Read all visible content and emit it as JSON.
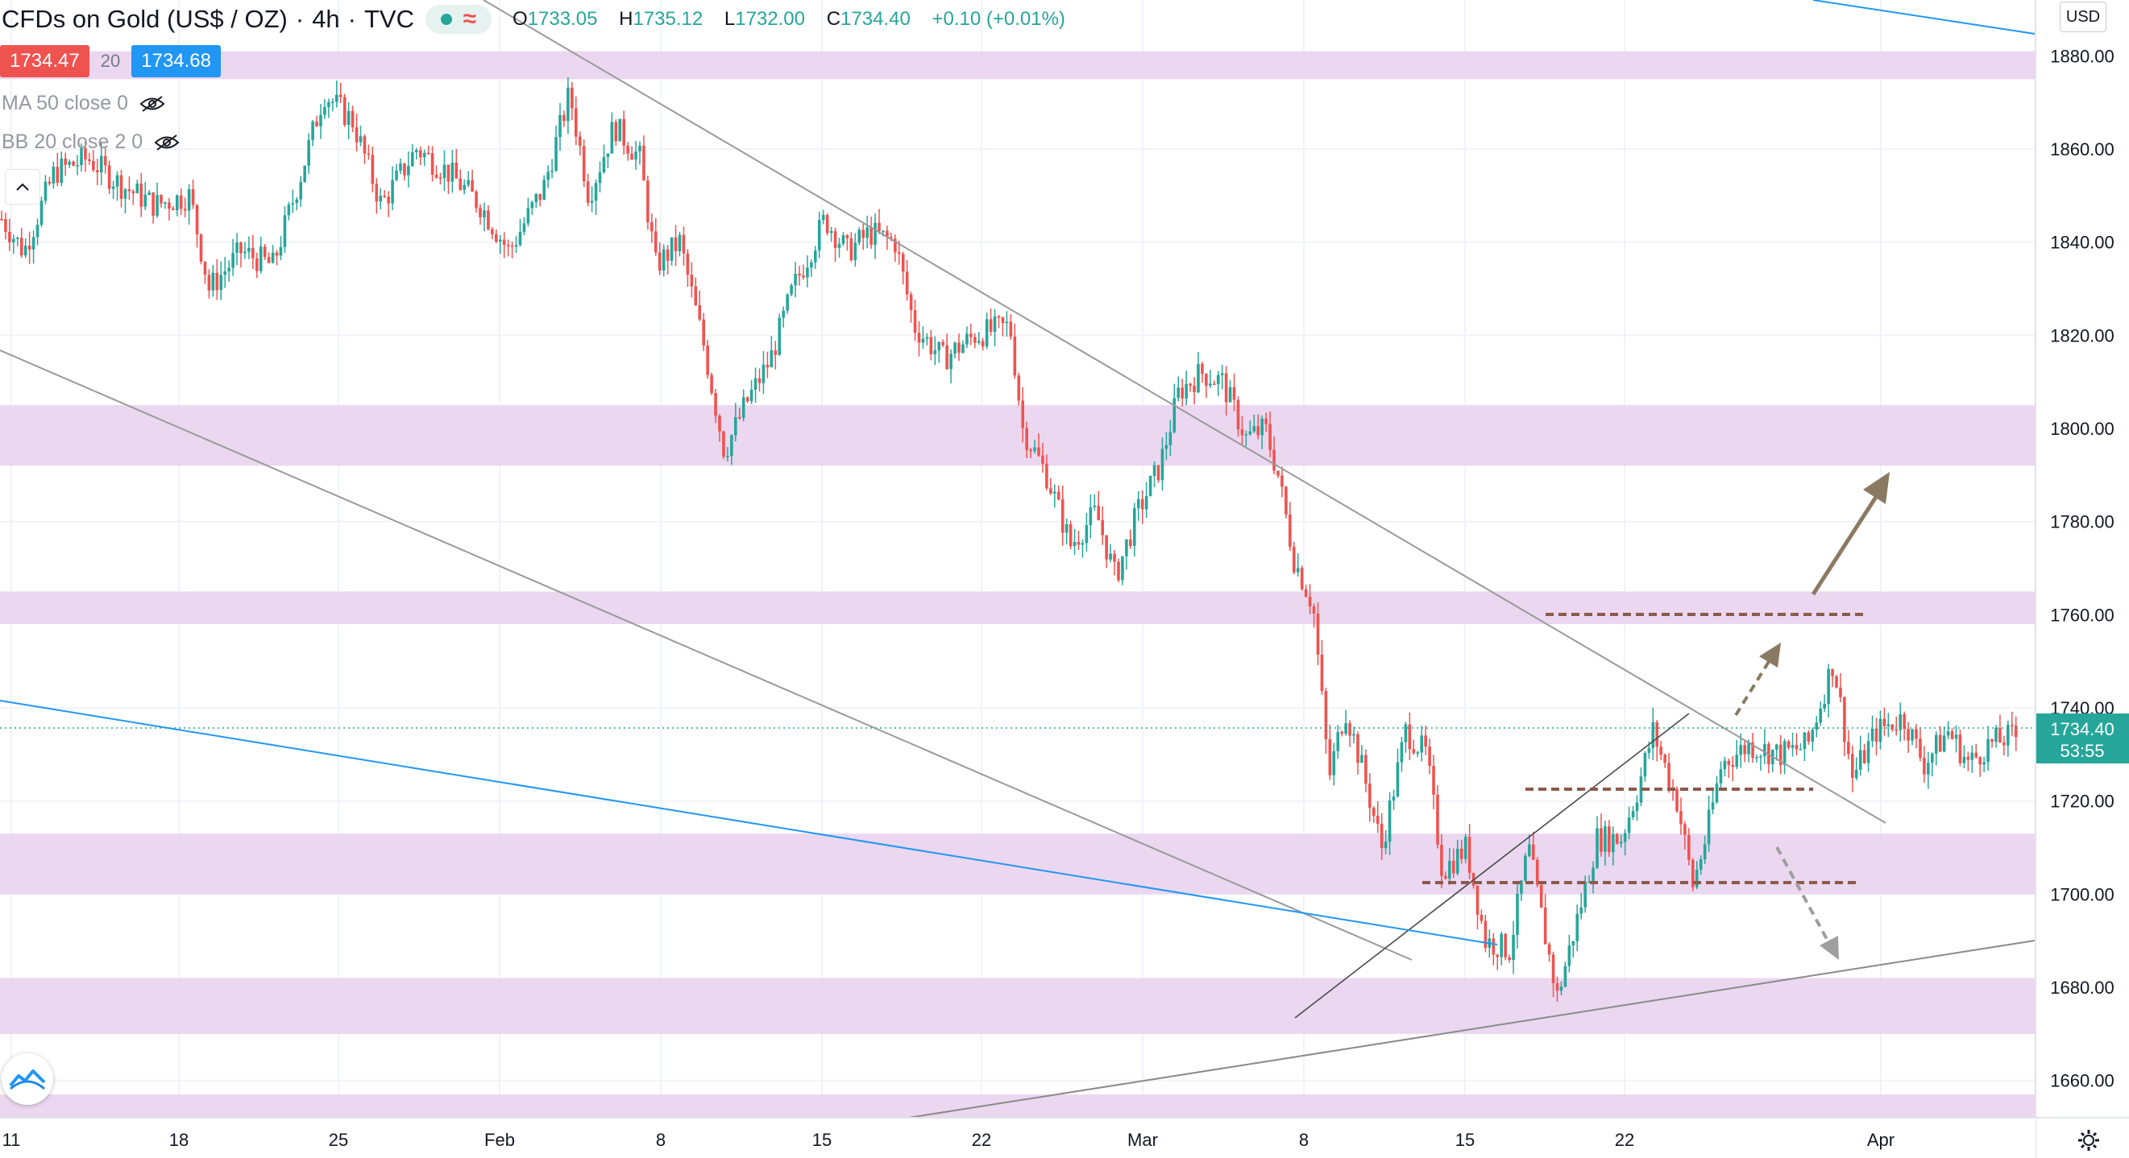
{
  "header": {
    "title": "CFDs on Gold (US$ / OZ)",
    "interval": "4h",
    "source": "TVC",
    "wave_icon": "≈",
    "ohlc": {
      "open_label": "O",
      "open": "1733.05",
      "high_label": "H",
      "high": "1735.12",
      "low_label": "L",
      "low": "1732.00",
      "close_label": "C",
      "close": "1734.40",
      "change": "+0.10 (+0.01%)"
    }
  },
  "quote": {
    "bid": "1734.47",
    "spread": "20",
    "ask": "1734.68"
  },
  "indicators": [
    {
      "label": "MA 50 close 0"
    },
    {
      "label": "BB 20 close 2 0"
    }
  ],
  "currency_button": "USD",
  "price_axis": {
    "ticks": [
      "1880.00",
      "1860.00",
      "1840.00",
      "1820.00",
      "1800.00",
      "1780.00",
      "1760.00",
      "1740.00",
      "1720.00",
      "1700.00",
      "1680.00",
      "1660.00"
    ],
    "current_price": "1734.40",
    "countdown": "53:55"
  },
  "time_axis": {
    "ticks": [
      "11",
      "18",
      "25",
      "Feb",
      "8",
      "15",
      "22",
      "Mar",
      "8",
      "15",
      "22",
      "Apr"
    ]
  },
  "colors": {
    "up": "#26a69a",
    "down": "#ef5350",
    "zone": "#e9d3ee",
    "trendline": "#9a9a9a",
    "blue_line": "#2196f3",
    "level_dash": "#8b5a4a",
    "arrow_main": "#8b7a62",
    "arrow_alt": "#9e9e9e"
  },
  "icons": {
    "hidden_eye": "eye-off-icon",
    "collapse": "chevron-up-icon",
    "logo": "tradingview-logo-icon",
    "settings": "gear-icon"
  },
  "chart_data": {
    "type": "candlestick",
    "instrument": "CFDs on Gold (US$ / OZ)",
    "interval": "4h",
    "ylim": [
      1652,
      1892
    ],
    "x_ticks": [
      "11",
      "18",
      "25",
      "Feb",
      "8",
      "15",
      "22",
      "Mar",
      "8",
      "15",
      "22",
      "Apr"
    ],
    "last_price": 1734.4,
    "support_resistance_zones": [
      {
        "from": 1875,
        "to": 1881
      },
      {
        "from": 1792,
        "to": 1805
      },
      {
        "from": 1758,
        "to": 1765
      },
      {
        "from": 1700,
        "to": 1713
      },
      {
        "from": 1670,
        "to": 1682
      },
      {
        "from": 1650,
        "to": 1657
      }
    ],
    "dashed_levels": [
      1759,
      1721,
      1701
    ],
    "price_path": [
      {
        "x": 0,
        "y": 1845
      },
      {
        "x": 14,
        "y": 1838
      },
      {
        "x": 33,
        "y": 1855
      },
      {
        "x": 54,
        "y": 1858
      },
      {
        "x": 76,
        "y": 1852
      },
      {
        "x": 96,
        "y": 1848
      },
      {
        "x": 118,
        "y": 1850
      },
      {
        "x": 130,
        "y": 1830
      },
      {
        "x": 150,
        "y": 1838
      },
      {
        "x": 170,
        "y": 1835
      },
      {
        "x": 188,
        "y": 1855
      },
      {
        "x": 202,
        "y": 1872
      },
      {
        "x": 220,
        "y": 1866
      },
      {
        "x": 238,
        "y": 1848
      },
      {
        "x": 260,
        "y": 1860
      },
      {
        "x": 280,
        "y": 1855
      },
      {
        "x": 300,
        "y": 1848
      },
      {
        "x": 318,
        "y": 1838
      },
      {
        "x": 340,
        "y": 1852
      },
      {
        "x": 356,
        "y": 1872
      },
      {
        "x": 368,
        "y": 1850
      },
      {
        "x": 384,
        "y": 1865
      },
      {
        "x": 400,
        "y": 1858
      },
      {
        "x": 410,
        "y": 1835
      },
      {
        "x": 425,
        "y": 1840
      },
      {
        "x": 440,
        "y": 1818
      },
      {
        "x": 453,
        "y": 1795
      },
      {
        "x": 466,
        "y": 1805
      },
      {
        "x": 482,
        "y": 1815
      },
      {
        "x": 496,
        "y": 1830
      },
      {
        "x": 516,
        "y": 1845
      },
      {
        "x": 530,
        "y": 1838
      },
      {
        "x": 544,
        "y": 1842
      },
      {
        "x": 560,
        "y": 1840
      },
      {
        "x": 572,
        "y": 1822
      },
      {
        "x": 590,
        "y": 1815
      },
      {
        "x": 610,
        "y": 1820
      },
      {
        "x": 632,
        "y": 1822
      },
      {
        "x": 640,
        "y": 1800
      },
      {
        "x": 655,
        "y": 1790
      },
      {
        "x": 670,
        "y": 1775
      },
      {
        "x": 686,
        "y": 1782
      },
      {
        "x": 698,
        "y": 1768
      },
      {
        "x": 712,
        "y": 1782
      },
      {
        "x": 726,
        "y": 1792
      },
      {
        "x": 738,
        "y": 1808
      },
      {
        "x": 752,
        "y": 1812
      },
      {
        "x": 765,
        "y": 1810
      },
      {
        "x": 780,
        "y": 1798
      },
      {
        "x": 792,
        "y": 1800
      },
      {
        "x": 800,
        "y": 1790
      },
      {
        "x": 810,
        "y": 1772
      },
      {
        "x": 822,
        "y": 1762
      },
      {
        "x": 832,
        "y": 1725
      },
      {
        "x": 842,
        "y": 1740
      },
      {
        "x": 852,
        "y": 1728
      },
      {
        "x": 865,
        "y": 1710
      },
      {
        "x": 880,
        "y": 1735
      },
      {
        "x": 893,
        "y": 1730
      },
      {
        "x": 903,
        "y": 1705
      },
      {
        "x": 918,
        "y": 1710
      },
      {
        "x": 930,
        "y": 1690
      },
      {
        "x": 945,
        "y": 1688
      },
      {
        "x": 957,
        "y": 1710
      },
      {
        "x": 968,
        "y": 1690
      },
      {
        "x": 975,
        "y": 1678
      },
      {
        "x": 990,
        "y": 1698
      },
      {
        "x": 1000,
        "y": 1712
      },
      {
        "x": 1015,
        "y": 1712
      },
      {
        "x": 1025,
        "y": 1722
      },
      {
        "x": 1035,
        "y": 1735
      },
      {
        "x": 1050,
        "y": 1720
      },
      {
        "x": 1060,
        "y": 1702
      },
      {
        "x": 1068,
        "y": 1712
      },
      {
        "x": 1078,
        "y": 1728
      },
      {
        "x": 1095,
        "y": 1732
      },
      {
        "x": 1115,
        "y": 1730
      },
      {
        "x": 1132,
        "y": 1732
      },
      {
        "x": 1148,
        "y": 1750
      },
      {
        "x": 1160,
        "y": 1725
      },
      {
        "x": 1175,
        "y": 1735
      },
      {
        "x": 1192,
        "y": 1738
      },
      {
        "x": 1205,
        "y": 1728
      },
      {
        "x": 1220,
        "y": 1735
      },
      {
        "x": 1233,
        "y": 1728
      },
      {
        "x": 1245,
        "y": 1732
      },
      {
        "x": 1260,
        "y": 1734
      }
    ]
  }
}
